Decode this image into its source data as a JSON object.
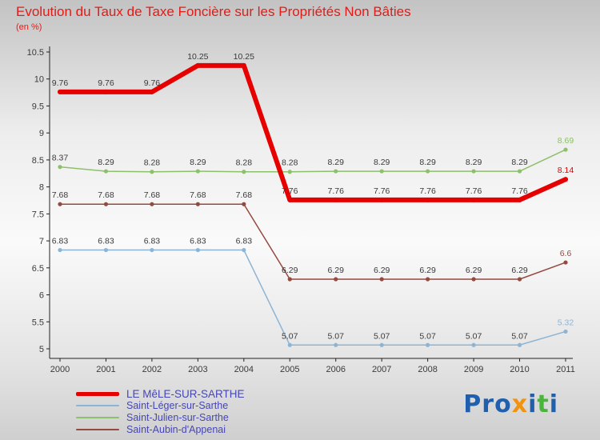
{
  "title": "Evolution du Taux de Taxe Foncière sur les Propriétés Non Bâties",
  "subtitle": "(en %)",
  "chart_data": {
    "type": "line",
    "x": [
      "2000",
      "2001",
      "2002",
      "2003",
      "2004",
      "2005",
      "2006",
      "2007",
      "2008",
      "2009",
      "2010",
      "2011"
    ],
    "ylim": [
      5,
      10.5
    ],
    "ytick_step": 0.5,
    "grid": false,
    "legend_position": "bottom-left",
    "series": [
      {
        "name": "LE MêLE-SUR-SARTHE",
        "color": "#e60000",
        "line_width": 6,
        "values": [
          9.76,
          9.76,
          9.76,
          10.25,
          10.25,
          7.76,
          7.76,
          7.76,
          7.76,
          7.76,
          7.76,
          8.14
        ]
      },
      {
        "name": "Saint-Léger-sur-Sarthe",
        "color": "#8cb4d4",
        "line_width": 1.5,
        "values": [
          6.83,
          6.83,
          6.83,
          6.83,
          6.83,
          5.07,
          5.07,
          5.07,
          5.07,
          5.07,
          5.07,
          5.32
        ]
      },
      {
        "name": "Saint-Julien-sur-Sarthe",
        "color": "#8dc06a",
        "line_width": 1.5,
        "values": [
          8.37,
          8.29,
          8.28,
          8.29,
          8.28,
          8.28,
          8.29,
          8.29,
          8.29,
          8.29,
          8.29,
          8.69
        ]
      },
      {
        "name": "Saint-Aubin-d'Appenai",
        "color": "#944a3f",
        "line_width": 1.5,
        "values": [
          7.68,
          7.68,
          7.68,
          7.68,
          7.68,
          6.29,
          6.29,
          6.29,
          6.29,
          6.29,
          6.29,
          6.6
        ]
      }
    ]
  },
  "axis": {
    "line_color": "#222222",
    "label_color": "#3a3a3a"
  },
  "logo": {
    "text": "Proxiti",
    "letters": [
      {
        "ch": "P",
        "color": "#1f5fae"
      },
      {
        "ch": "r",
        "color": "#1f5fae"
      },
      {
        "ch": "o",
        "color": "#1f5fae"
      },
      {
        "ch": "x",
        "color": "#f2930f"
      },
      {
        "ch": "i",
        "color": "#1f5fae"
      },
      {
        "ch": "t",
        "color": "#49b53a"
      },
      {
        "ch": "i",
        "color": "#1f5fae"
      }
    ]
  }
}
